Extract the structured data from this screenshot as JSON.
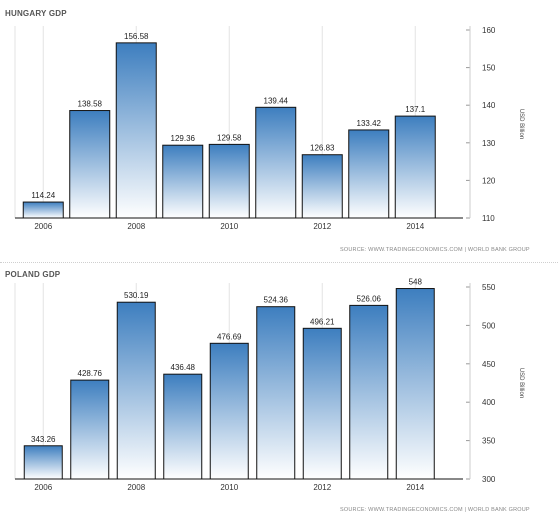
{
  "chart_data": [
    {
      "type": "bar",
      "title": "HUNGARY GDP",
      "ylabel": "USD Billion",
      "categories": [
        "2006",
        "2007",
        "2008",
        "2009",
        "2010",
        "2011",
        "2012",
        "2013",
        "2014"
      ],
      "values": [
        114.24,
        138.58,
        156.58,
        129.36,
        129.58,
        139.44,
        126.83,
        133.42,
        137.1
      ],
      "value_labels": [
        "114.24",
        "138.58",
        "156.58",
        "129.36",
        "129.58",
        "139.44",
        "126.83",
        "133.42",
        "137.1"
      ],
      "x_tick_labels": [
        "2006",
        "",
        "2008",
        "",
        "2010",
        "",
        "2012",
        "",
        "2014"
      ],
      "y_ticks": [
        "110",
        "120",
        "130",
        "140",
        "150",
        "160"
      ],
      "ylim": [
        110,
        160
      ],
      "grid": "vertical",
      "source": "SOURCE: WWW.TRADINGECONOMICS.COM | WORLD BANK GROUP",
      "bar_color": "#3d7ebf"
    },
    {
      "type": "bar",
      "title": "POLAND GDP",
      "ylabel": "USD Billion",
      "categories": [
        "2006",
        "2007",
        "2008",
        "2009",
        "2010",
        "2011",
        "2012",
        "2013",
        "2014"
      ],
      "values": [
        343.26,
        428.76,
        530.19,
        436.48,
        476.69,
        524.36,
        496.21,
        526.06,
        548
      ],
      "value_labels": [
        "343.26",
        "428.76",
        "530.19",
        "436.48",
        "476.69",
        "524.36",
        "496.21",
        "526.06",
        "548"
      ],
      "x_tick_labels": [
        "2006",
        "",
        "2008",
        "",
        "2010",
        "",
        "2012",
        "",
        "2014"
      ],
      "y_ticks": [
        "300",
        "350",
        "400",
        "450",
        "500",
        "550"
      ],
      "ylim": [
        300,
        550
      ],
      "grid": "vertical",
      "source": "SOURCE: WWW.TRADINGECONOMICS.COM | WORLD BANK GROUP",
      "bar_color": "#3d7ebf"
    }
  ]
}
